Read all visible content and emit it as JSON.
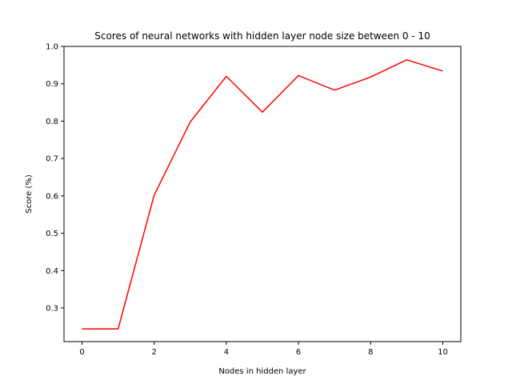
{
  "chart_data": {
    "type": "line",
    "title": "Scores of neural networks with hidden layer node size between 0 - 10",
    "xlabel": "Nodes in hidden layer",
    "ylabel": "Score (%)",
    "xlim": [
      -0.5,
      10.5
    ],
    "ylim": [
      0.21,
      1.0
    ],
    "xticks": [
      0,
      2,
      4,
      6,
      8,
      10
    ],
    "xtick_labels": [
      "0",
      "2",
      "4",
      "6",
      "8",
      "10"
    ],
    "yticks": [
      0.3,
      0.4,
      0.5,
      0.6,
      0.7,
      0.8,
      0.9,
      1.0
    ],
    "ytick_labels": [
      "0.3",
      "0.4",
      "0.5",
      "0.6",
      "0.7",
      "0.8",
      "0.9",
      "1.0"
    ],
    "grid": false,
    "series": [
      {
        "color": "#ff0000",
        "x": [
          0,
          1,
          2,
          3,
          4,
          5,
          6,
          7,
          8,
          9,
          10
        ],
        "y": [
          0.244,
          0.244,
          0.602,
          0.798,
          0.92,
          0.824,
          0.922,
          0.883,
          0.918,
          0.964,
          0.934
        ]
      }
    ]
  }
}
